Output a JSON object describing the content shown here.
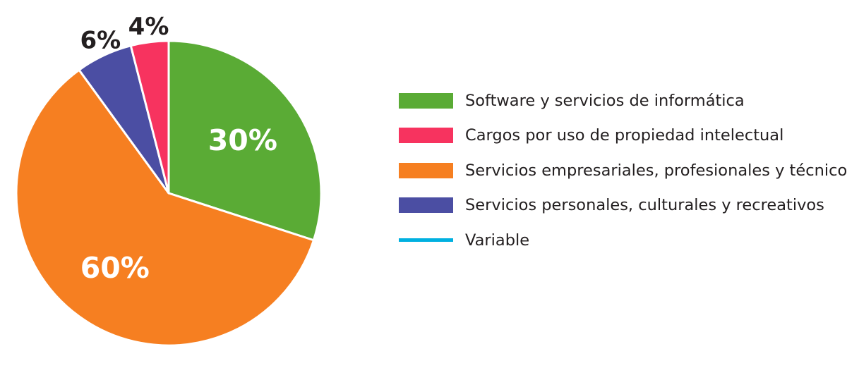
{
  "chart_data": {
    "type": "pie",
    "title": "",
    "series": [
      {
        "name": "Software y servicios de informática",
        "value": 30,
        "label": "30%",
        "color": "#5aab35",
        "label_style": "inside-white"
      },
      {
        "name": "Servicios empresariales, profesionales y técnicos",
        "value": 60,
        "label": "60%",
        "color": "#f67f21",
        "label_style": "inside-white"
      },
      {
        "name": "Servicios personales, culturales y recreativos",
        "value": 6,
        "label": "6%",
        "color": "#4b4ea3",
        "label_style": "outside-dark"
      },
      {
        "name": "Cargos por uso de propiedad intelectual",
        "value": 4,
        "label": "4%",
        "color": "#f7335f",
        "label_style": "outside-dark"
      }
    ],
    "legend": {
      "position": "right",
      "items": [
        {
          "label": "Software y servicios de informática",
          "color": "#5aab35",
          "marker": "box"
        },
        {
          "label": "Cargos por uso de propiedad intelectual",
          "color": "#f7335f",
          "marker": "box"
        },
        {
          "label": "Servicios empresariales, profesionales y técnicos",
          "color": "#f67f21",
          "marker": "box"
        },
        {
          "label": "Servicios personales, culturales y recreativos",
          "color": "#4b4ea3",
          "marker": "box"
        },
        {
          "label": "Variable",
          "color": "#00b0e0",
          "marker": "line"
        }
      ]
    }
  }
}
